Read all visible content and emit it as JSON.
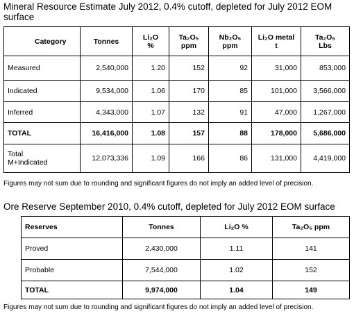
{
  "title": "Mineral Resource Estimate July 2012, 0.4% cutoff, depleted for July 2012 EOM surface",
  "resource_table": {
    "header": [
      "Category",
      "Tonnes",
      "Li₂O\n%",
      "Ta₂O₅\nppm",
      "Nb₂O₅\nppm",
      "Li₂O metal\nt",
      "Ta₂O₅\nLbs"
    ],
    "rows": [
      [
        "Measured",
        "2,540,000",
        "1.20",
        "152",
        "92",
        "31,000",
        "853,000"
      ],
      [
        "Indicated",
        "9,534,000",
        "1.06",
        "170",
        "85",
        "101,000",
        "3,566,000"
      ],
      [
        "Inferred",
        "4,343,000",
        "1.07",
        "132",
        "91",
        "47,000",
        "1,267,000"
      ],
      [
        "TOTAL",
        "16,416,000",
        "1.08",
        "157",
        "88",
        "178,000",
        "5,686,000"
      ],
      [
        "Total\nM+Indicated",
        "12,073,336",
        "1.09",
        "166",
        "86",
        "131,000",
        "4,419,000"
      ]
    ]
  },
  "resource_note": "Figures may not sum due to rounding and significant figures do not imply an added level of precision.",
  "reserve_title": "Ore Reserve September 2010, 0.4% cutoff, depleted for July 2012 EOM surface",
  "reserve_table": {
    "header": [
      "Reserves",
      "Tonnes",
      "Li₂O %",
      "Ta₂O₅ ppm"
    ],
    "rows": [
      [
        "Proved",
        "2,430,000",
        "1.11",
        "141"
      ],
      [
        "Probable",
        "7,544,000",
        "1.02",
        "152"
      ],
      [
        "TOTAL",
        "9,974,000",
        "1.04",
        "149"
      ]
    ]
  },
  "reserve_note": "Figures may not sum due to rounding and significant figures do not imply an added level of precision."
}
